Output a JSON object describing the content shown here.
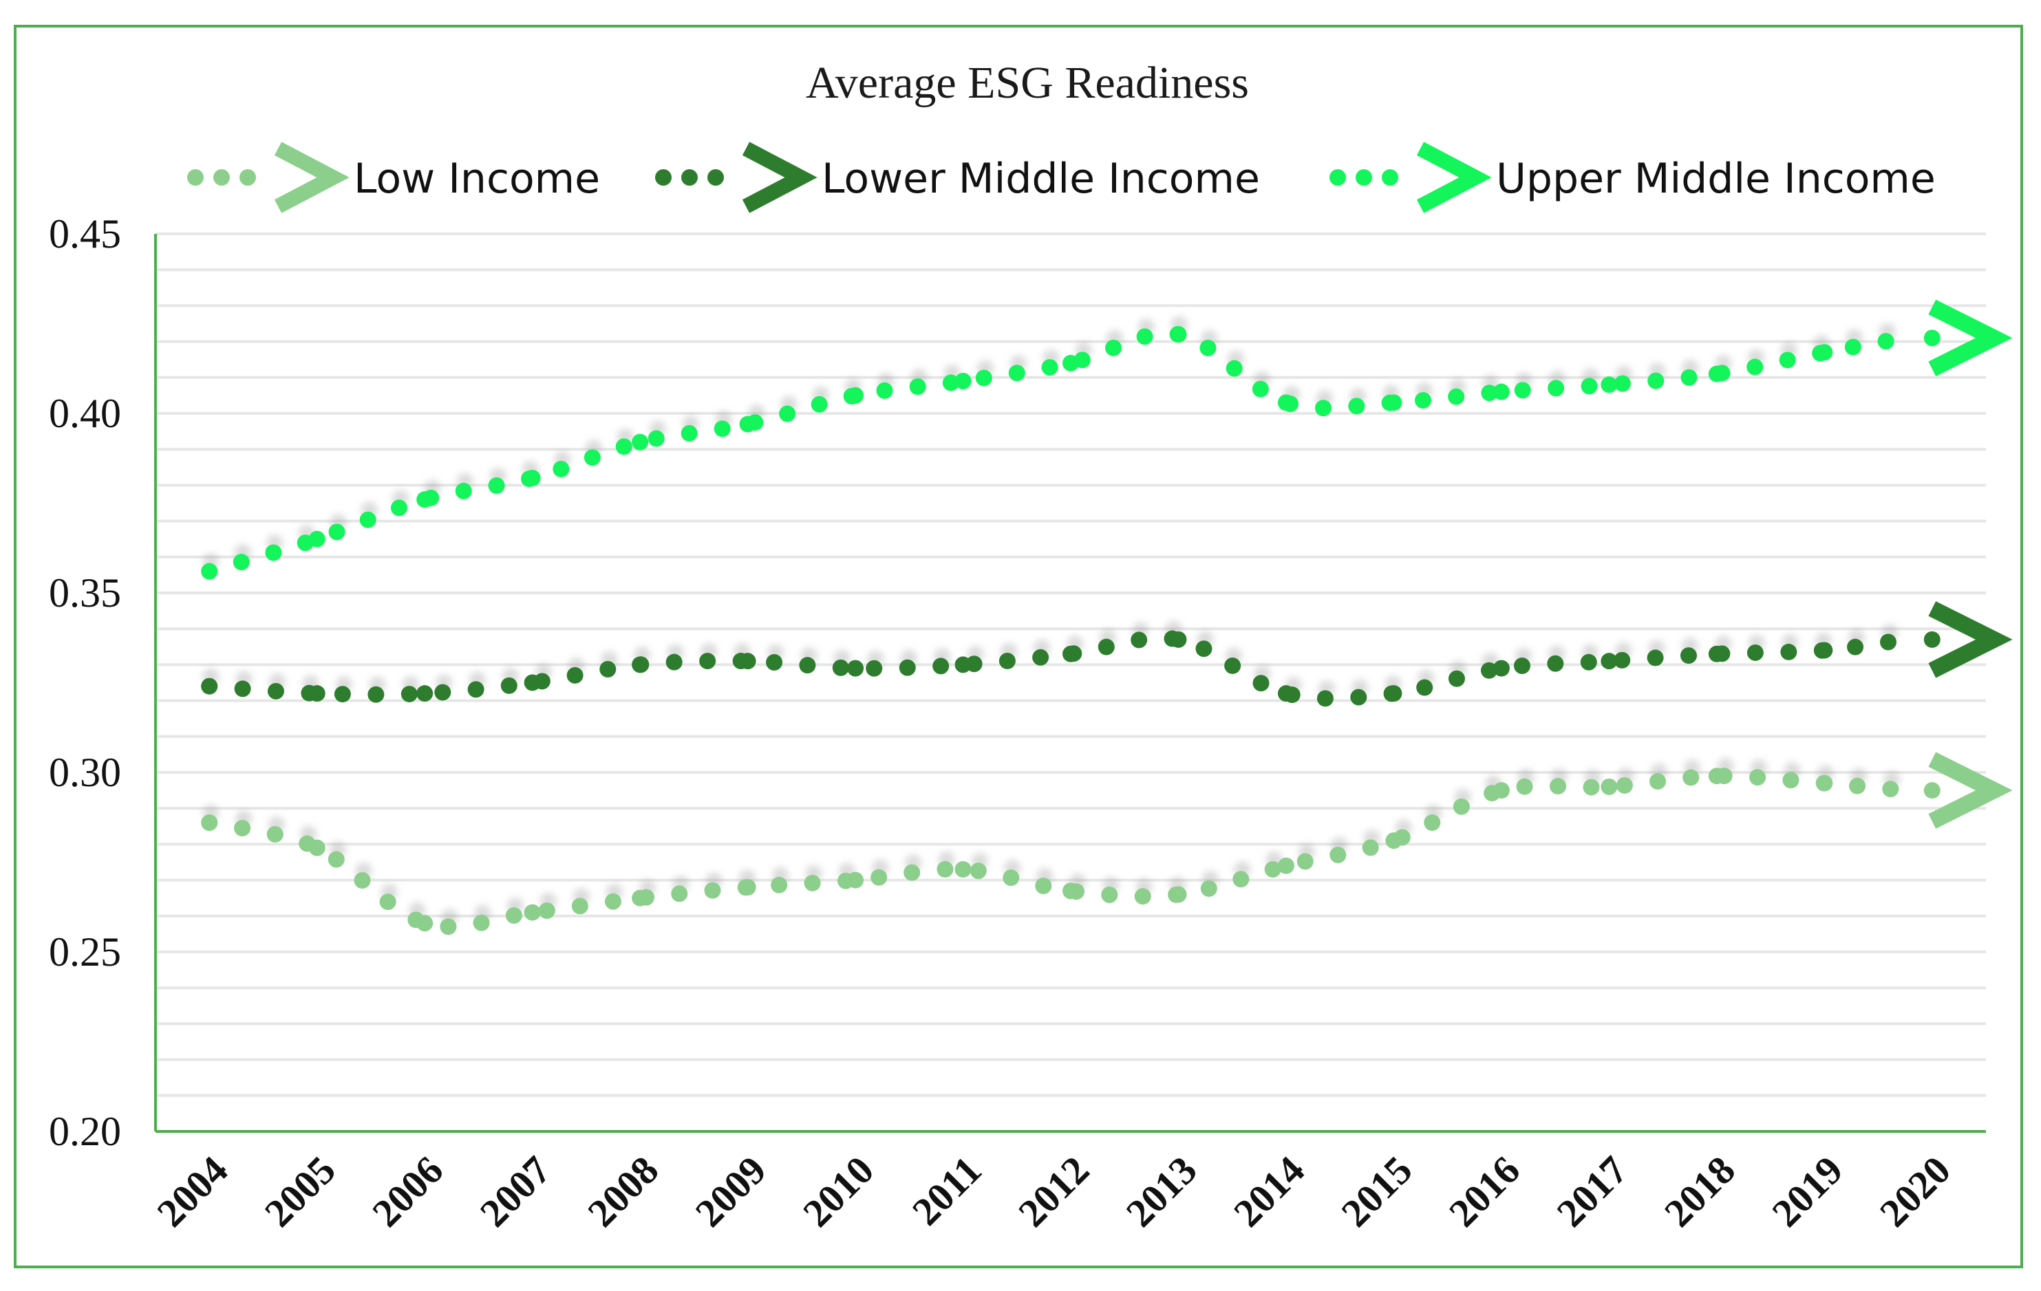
{
  "chart_data": {
    "type": "line",
    "title": "Average ESG Readiness",
    "xlabel": "",
    "ylabel": "",
    "categories": [
      "2004",
      "2005",
      "2006",
      "2007",
      "2008",
      "2009",
      "2010",
      "2011",
      "2012",
      "2013",
      "2014",
      "2015",
      "2016",
      "2017",
      "2018",
      "2019",
      "2020"
    ],
    "ylim": [
      0.2,
      0.45
    ],
    "yticks": [
      "0.20",
      "0.25",
      "0.30",
      "0.35",
      "0.40",
      "0.45"
    ],
    "grid": "horizontal",
    "legend_position": "top",
    "series": [
      {
        "name": "Low Income",
        "color": "#8ccf8c",
        "values": [
          0.286,
          0.279,
          0.258,
          0.261,
          0.265,
          0.268,
          0.27,
          0.273,
          0.267,
          0.266,
          0.274,
          0.281,
          0.295,
          0.296,
          0.299,
          0.297,
          0.295
        ]
      },
      {
        "name": "Lower Middle Income",
        "color": "#2e7d2e",
        "values": [
          0.324,
          0.322,
          0.322,
          0.325,
          0.33,
          0.331,
          0.329,
          0.33,
          0.333,
          0.337,
          0.322,
          0.322,
          0.329,
          0.331,
          0.333,
          0.334,
          0.337
        ]
      },
      {
        "name": "Upper Middle Income",
        "color": "#13f55a",
        "values": [
          0.356,
          0.365,
          0.376,
          0.382,
          0.392,
          0.397,
          0.405,
          0.409,
          0.414,
          0.422,
          0.403,
          0.403,
          0.406,
          0.408,
          0.411,
          0.417,
          0.421
        ]
      }
    ]
  }
}
